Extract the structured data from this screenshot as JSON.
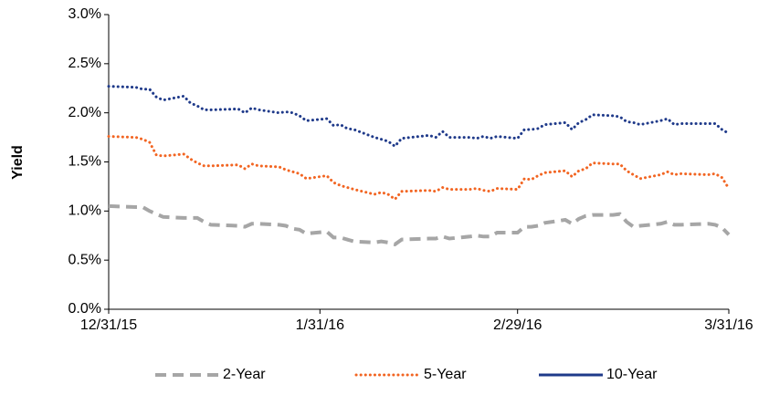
{
  "chart_data": {
    "type": "line",
    "ylabel": "Yield",
    "x": [
      "12/31/15",
      "1/4/16",
      "1/5/16",
      "1/6/16",
      "1/7/16",
      "1/8/16",
      "1/11/16",
      "1/12/16",
      "1/13/16",
      "1/14/16",
      "1/15/16",
      "1/19/16",
      "1/20/16",
      "1/21/16",
      "1/22/16",
      "1/25/16",
      "1/26/16",
      "1/27/16",
      "1/28/16",
      "1/29/16",
      "2/1/16",
      "2/2/16",
      "2/3/16",
      "2/4/16",
      "2/5/16",
      "2/8/16",
      "2/9/16",
      "2/10/16",
      "2/11/16",
      "2/12/16",
      "2/16/16",
      "2/17/16",
      "2/18/16",
      "2/19/16",
      "2/22/16",
      "2/23/16",
      "2/24/16",
      "2/25/16",
      "2/26/16",
      "2/29/16",
      "3/1/16",
      "3/2/16",
      "3/3/16",
      "3/4/16",
      "3/7/16",
      "3/8/16",
      "3/9/16",
      "3/10/16",
      "3/11/16",
      "3/14/16",
      "3/15/16",
      "3/16/16",
      "3/17/16",
      "3/18/16",
      "3/21/16",
      "3/22/16",
      "3/23/16",
      "3/24/16",
      "3/28/16",
      "3/29/16",
      "3/30/16",
      "3/31/16"
    ],
    "series": [
      {
        "name": "2-Year",
        "color": "#a6a6a6",
        "style": "dashed",
        "values": [
          1.05,
          1.04,
          1.04,
          1.0,
          0.97,
          0.94,
          0.93,
          0.93,
          0.93,
          0.89,
          0.86,
          0.85,
          0.84,
          0.87,
          0.87,
          0.86,
          0.85,
          0.82,
          0.81,
          0.77,
          0.79,
          0.73,
          0.73,
          0.71,
          0.69,
          0.68,
          0.69,
          0.68,
          0.66,
          0.71,
          0.72,
          0.72,
          0.74,
          0.72,
          0.74,
          0.75,
          0.74,
          0.74,
          0.78,
          0.78,
          0.84,
          0.84,
          0.85,
          0.88,
          0.91,
          0.87,
          0.92,
          0.95,
          0.96,
          0.96,
          0.97,
          0.89,
          0.84,
          0.85,
          0.87,
          0.89,
          0.86,
          0.86,
          0.87,
          0.86,
          0.83,
          0.76
        ]
      },
      {
        "name": "5-Year",
        "color": "#f26522",
        "style": "dotted",
        "values": [
          1.76,
          1.75,
          1.73,
          1.7,
          1.57,
          1.56,
          1.58,
          1.53,
          1.49,
          1.46,
          1.46,
          1.47,
          1.43,
          1.48,
          1.46,
          1.45,
          1.42,
          1.4,
          1.38,
          1.33,
          1.36,
          1.29,
          1.26,
          1.24,
          1.22,
          1.17,
          1.19,
          1.17,
          1.12,
          1.2,
          1.21,
          1.2,
          1.24,
          1.22,
          1.22,
          1.23,
          1.21,
          1.2,
          1.23,
          1.22,
          1.33,
          1.32,
          1.36,
          1.39,
          1.41,
          1.35,
          1.41,
          1.43,
          1.49,
          1.48,
          1.48,
          1.41,
          1.37,
          1.33,
          1.37,
          1.4,
          1.37,
          1.38,
          1.37,
          1.38,
          1.34,
          1.23
        ]
      },
      {
        "name": "10-Year",
        "color": "#1f3a8a",
        "style": "dotted",
        "values": [
          2.27,
          2.26,
          2.24,
          2.24,
          2.16,
          2.13,
          2.17,
          2.1,
          2.07,
          2.03,
          2.03,
          2.04,
          2.0,
          2.05,
          2.03,
          2.0,
          2.01,
          2.0,
          1.97,
          1.92,
          1.94,
          1.87,
          1.88,
          1.84,
          1.83,
          1.75,
          1.73,
          1.71,
          1.66,
          1.74,
          1.77,
          1.75,
          1.81,
          1.75,
          1.75,
          1.74,
          1.76,
          1.74,
          1.76,
          1.74,
          1.83,
          1.83,
          1.84,
          1.88,
          1.9,
          1.83,
          1.9,
          1.93,
          1.98,
          1.97,
          1.96,
          1.91,
          1.9,
          1.88,
          1.92,
          1.94,
          1.88,
          1.89,
          1.89,
          1.89,
          1.83,
          1.79
        ]
      }
    ],
    "xlim": [
      "12/31/15",
      "3/31/16"
    ],
    "xticks": [
      "12/31/15",
      "1/31/16",
      "2/29/16",
      "3/31/16"
    ],
    "ylim": [
      0,
      3
    ],
    "yticks": [
      {
        "value": 0,
        "label": "0.0%"
      },
      {
        "value": 0.5,
        "label": "0.5%"
      },
      {
        "value": 1,
        "label": "1.0%"
      },
      {
        "value": 1.5,
        "label": "1.5%"
      },
      {
        "value": 2,
        "label": "2.0%"
      },
      {
        "value": 2.5,
        "label": "2.5%"
      },
      {
        "value": 3,
        "label": "3.0%"
      }
    ],
    "legend": "bottom"
  }
}
